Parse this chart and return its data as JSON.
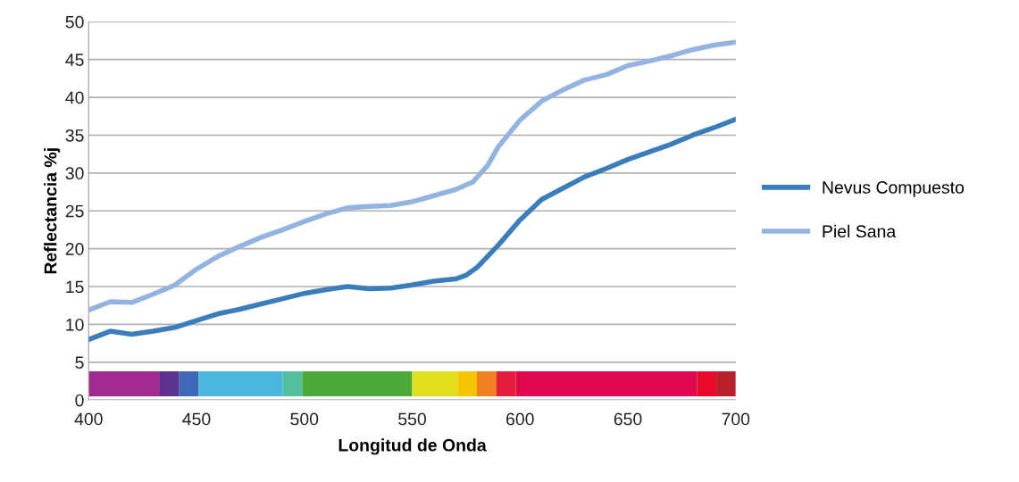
{
  "chart_data": {
    "type": "line",
    "xlabel": "Longitud de Onda",
    "ylabel": "Reflectancia %j",
    "xlim": [
      400,
      700
    ],
    "xticks": [
      400,
      450,
      500,
      550,
      600,
      650,
      700
    ],
    "ylim": [
      0,
      50
    ],
    "yticks": [
      0,
      5,
      10,
      15,
      20,
      25,
      30,
      35,
      40,
      45,
      50
    ],
    "grid": "y",
    "legend": "right",
    "marker": "none",
    "line_style": "solid",
    "series": [
      {
        "name": "Nevus Compuesto",
        "color": "#3b7dbb",
        "x": [
          400,
          410,
          420,
          430,
          440,
          450,
          460,
          470,
          480,
          490,
          500,
          510,
          520,
          530,
          540,
          550,
          560,
          570,
          575,
          580,
          590,
          600,
          610,
          620,
          630,
          640,
          650,
          660,
          670,
          680,
          690,
          700
        ],
        "values": [
          8,
          9.1,
          8.7,
          9.1,
          9.6,
          10.5,
          11.4,
          12,
          12.7,
          13.4,
          14.1,
          14.6,
          15,
          14.7,
          14.8,
          15.2,
          15.7,
          16,
          16.5,
          17.5,
          20.5,
          23.8,
          26.5,
          28,
          29.5,
          30.6,
          31.8,
          32.8,
          33.8,
          35,
          36,
          37.1
        ]
      },
      {
        "name": "Piel Sana",
        "color": "#93b3e0",
        "x": [
          400,
          410,
          420,
          430,
          440,
          450,
          460,
          470,
          480,
          490,
          500,
          510,
          520,
          530,
          540,
          550,
          560,
          570,
          578,
          585,
          590,
          600,
          610,
          620,
          630,
          640,
          650,
          660,
          670,
          680,
          690,
          700
        ],
        "values": [
          11.9,
          13,
          12.9,
          14,
          15.2,
          17.3,
          19,
          20.3,
          21.5,
          22.5,
          23.6,
          24.6,
          25.4,
          25.6,
          25.7,
          26.2,
          27,
          27.8,
          28.8,
          31,
          33.5,
          37,
          39.5,
          41,
          42.3,
          43,
          44.2,
          44.8,
          45.5,
          46.3,
          46.9,
          47.3
        ]
      }
    ]
  }
}
